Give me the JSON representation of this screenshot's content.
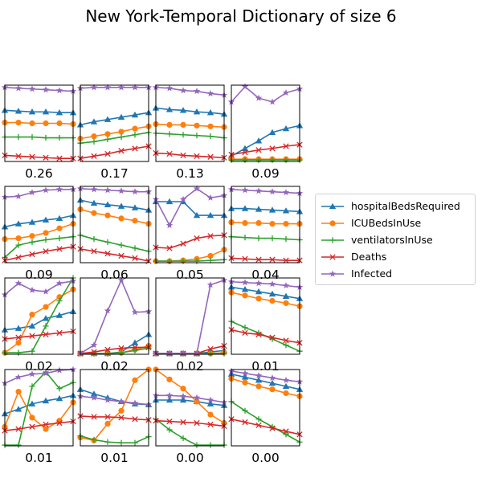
{
  "title": "New York-Temporal Dictionary of size 6",
  "colors": {
    "hospitalBedsRequired": "#1f77b4",
    "ICUBedsInUse": "#ff7f0e",
    "ventilatorsInUse": "#2ca02c",
    "Deaths": "#d62728",
    "Infected": "#9467bd"
  },
  "chart_data": {
    "type": "line",
    "title": "New York-Temporal Dictionary of size 6",
    "legend": {
      "position": "right",
      "entries": [
        {
          "key": "hospitalBedsRequired",
          "label": "hospitalBedsRequired",
          "marker": "triangle"
        },
        {
          "key": "ICUBedsInUse",
          "label": "ICUBedsInUse",
          "marker": "circle"
        },
        {
          "key": "ventilatorsInUse",
          "label": "ventilatorsInUse",
          "marker": "plus"
        },
        {
          "key": "Deaths",
          "label": "Deaths",
          "marker": "x"
        },
        {
          "key": "Infected",
          "label": "Infected",
          "marker": "star"
        }
      ]
    },
    "x": [
      0,
      1,
      2,
      3,
      4,
      5
    ],
    "ylim": [
      0,
      1
    ],
    "axis_ticks": false,
    "panels": [
      {
        "weight": "0.26",
        "series": {
          "hospitalBedsRequired": [
            0.67,
            0.66,
            0.65,
            0.65,
            0.64,
            0.64
          ],
          "ICUBedsInUse": [
            0.51,
            0.51,
            0.5,
            0.5,
            0.5,
            0.49
          ],
          "ventilatorsInUse": [
            0.32,
            0.32,
            0.32,
            0.31,
            0.31,
            0.31
          ],
          "Deaths": [
            0.08,
            0.07,
            0.06,
            0.05,
            0.04,
            0.04
          ],
          "Infected": [
            0.97,
            0.96,
            0.95,
            0.94,
            0.93,
            0.92
          ]
        }
      },
      {
        "weight": "0.17",
        "series": {
          "hospitalBedsRequired": [
            0.48,
            0.52,
            0.55,
            0.58,
            0.61,
            0.64
          ],
          "ICUBedsInUse": [
            0.3,
            0.33,
            0.36,
            0.39,
            0.43,
            0.46
          ],
          "ventilatorsInUse": [
            0.24,
            0.26,
            0.29,
            0.32,
            0.35,
            0.38
          ],
          "Deaths": [
            0.04,
            0.07,
            0.1,
            0.14,
            0.17,
            0.2
          ],
          "Infected": [
            0.96,
            0.97,
            0.97,
            0.97,
            0.97,
            0.97
          ]
        }
      },
      {
        "weight": "0.13",
        "series": {
          "hospitalBedsRequired": [
            0.7,
            0.68,
            0.67,
            0.65,
            0.64,
            0.62
          ],
          "ICUBedsInUse": [
            0.49,
            0.48,
            0.48,
            0.47,
            0.46,
            0.45
          ],
          "ventilatorsInUse": [
            0.37,
            0.36,
            0.35,
            0.34,
            0.33,
            0.31
          ],
          "Deaths": [
            0.11,
            0.1,
            0.08,
            0.07,
            0.06,
            0.05
          ],
          "Infected": [
            0.97,
            0.96,
            0.93,
            0.92,
            0.89,
            0.87
          ]
        }
      },
      {
        "weight": "0.09",
        "series": {
          "hospitalBedsRequired": [
            0.07,
            0.17,
            0.27,
            0.38,
            0.43,
            0.47
          ],
          "ICUBedsInUse": [
            0.03,
            0.03,
            0.03,
            0.03,
            0.03,
            0.03
          ],
          "ventilatorsInUse": [
            0.02,
            0.02,
            0.02,
            0.02,
            0.02,
            0.02
          ],
          "Deaths": [
            0.09,
            0.12,
            0.15,
            0.17,
            0.2,
            0.22
          ],
          "Infected": [
            0.78,
            0.98,
            0.83,
            0.78,
            0.9,
            0.95
          ]
        }
      },
      {
        "weight": "0.09",
        "series": {
          "hospitalBedsRequired": [
            0.47,
            0.51,
            0.53,
            0.56,
            0.58,
            0.62
          ],
          "ICUBedsInUse": [
            0.31,
            0.32,
            0.35,
            0.39,
            0.45,
            0.51
          ],
          "ventilatorsInUse": [
            0.07,
            0.23,
            0.27,
            0.3,
            0.32,
            0.34
          ],
          "Deaths": [
            0.03,
            0.07,
            0.11,
            0.15,
            0.18,
            0.21
          ],
          "Infected": [
            0.86,
            0.87,
            0.92,
            0.95,
            0.96,
            0.96
          ]
        }
      },
      {
        "weight": "0.06",
        "series": {
          "hospitalBedsRequired": [
            0.82,
            0.78,
            0.76,
            0.74,
            0.72,
            0.69
          ],
          "ICUBedsInUse": [
            0.7,
            0.65,
            0.62,
            0.58,
            0.55,
            0.51
          ],
          "ventilatorsInUse": [
            0.36,
            0.31,
            0.27,
            0.23,
            0.19,
            0.15
          ],
          "Deaths": [
            0.18,
            0.15,
            0.12,
            0.09,
            0.06,
            0.02
          ],
          "Infected": [
            0.97,
            0.96,
            0.95,
            0.94,
            0.93,
            0.93
          ]
        }
      },
      {
        "weight": "0.05",
        "series": {
          "hospitalBedsRequired": [
            0.8,
            0.8,
            0.8,
            0.62,
            0.62,
            0.62
          ],
          "ICUBedsInUse": [
            0.02,
            0.02,
            0.03,
            0.05,
            0.09,
            0.17
          ],
          "ventilatorsInUse": [
            0.02,
            0.02,
            0.02,
            0.02,
            0.03,
            0.04
          ],
          "Deaths": [
            0.2,
            0.19,
            0.25,
            0.32,
            0.35,
            0.36
          ],
          "Infected": [
            0.83,
            0.49,
            0.83,
            0.97,
            0.85,
            0.88
          ]
        }
      },
      {
        "weight": "0.04",
        "series": {
          "hospitalBedsRequired": [
            0.71,
            0.71,
            0.7,
            0.69,
            0.68,
            0.67
          ],
          "ICUBedsInUse": [
            0.53,
            0.52,
            0.52,
            0.51,
            0.51,
            0.51
          ],
          "ventilatorsInUse": [
            0.34,
            0.33,
            0.32,
            0.32,
            0.31,
            0.3
          ],
          "Deaths": [
            0.06,
            0.05,
            0.04,
            0.04,
            0.03,
            0.03
          ],
          "Infected": [
            0.96,
            0.95,
            0.94,
            0.93,
            0.92,
            0.91
          ]
        }
      },
      {
        "weight": "0.02",
        "series": {
          "hospitalBedsRequired": [
            0.32,
            0.34,
            0.37,
            0.47,
            0.51,
            0.56
          ],
          "ICUBedsInUse": [
            0.02,
            0.15,
            0.52,
            0.62,
            0.75,
            0.85
          ],
          "ventilatorsInUse": [
            0.02,
            0.02,
            0.04,
            0.37,
            0.7,
            1.0
          ],
          "Deaths": [
            0.2,
            0.22,
            0.24,
            0.26,
            0.28,
            0.3
          ],
          "Infected": [
            0.78,
            0.93,
            0.84,
            0.82,
            0.93,
            0.96
          ]
        }
      },
      {
        "weight": "0.02",
        "series": {
          "hospitalBedsRequired": [
            0.01,
            0.01,
            0.01,
            0.03,
            0.15,
            0.26
          ],
          "ICUBedsInUse": [
            0.01,
            0.01,
            0.01,
            0.02,
            0.06,
            0.11
          ],
          "ventilatorsInUse": [
            0.01,
            0.01,
            0.01,
            0.02,
            0.05,
            0.08
          ],
          "Deaths": [
            0.01,
            0.03,
            0.06,
            0.08,
            0.09,
            0.09
          ],
          "Infected": [
            0.01,
            0.12,
            0.57,
            0.97,
            0.55,
            0.56
          ]
        }
      },
      {
        "weight": "0.02",
        "series": {
          "hospitalBedsRequired": [
            0.01,
            0.01,
            0.01,
            0.01,
            0.03,
            0.05
          ],
          "ICUBedsInUse": [
            0.01,
            0.01,
            0.01,
            0.01,
            0.01,
            0.02
          ],
          "ventilatorsInUse": [
            0.01,
            0.01,
            0.01,
            0.01,
            0.01,
            0.01
          ],
          "Deaths": [
            0.01,
            0.01,
            0.01,
            0.01,
            0.07,
            0.11
          ],
          "Infected": [
            0.01,
            0.01,
            0.01,
            0.01,
            0.91,
            0.97
          ]
        }
      },
      {
        "weight": "0.01",
        "series": {
          "hospitalBedsRequired": [
            0.88,
            0.85,
            0.82,
            0.79,
            0.76,
            0.73
          ],
          "ICUBedsInUse": [
            0.81,
            0.77,
            0.73,
            0.7,
            0.67,
            0.63
          ],
          "ventilatorsInUse": [
            0.43,
            0.35,
            0.28,
            0.2,
            0.12,
            0.04
          ],
          "Deaths": [
            0.32,
            0.28,
            0.26,
            0.22,
            0.18,
            0.15
          ],
          "Infected": [
            0.95,
            0.94,
            0.93,
            0.92,
            0.9,
            0.88
          ]
        }
      },
      {
        "weight": "0.01",
        "series": {
          "hospitalBedsRequired": [
            0.42,
            0.48,
            0.55,
            0.59,
            0.62,
            0.66
          ],
          "ICUBedsInUse": [
            0.25,
            0.71,
            0.37,
            0.22,
            0.33,
            0.57
          ],
          "ventilatorsInUse": [
            0.01,
            0.01,
            0.78,
            0.97,
            0.75,
            0.83
          ],
          "Deaths": [
            0.2,
            0.22,
            0.25,
            0.28,
            0.3,
            0.32
          ],
          "Infected": [
            0.82,
            0.9,
            0.94,
            0.95,
            0.99,
            1.0
          ]
        }
      },
      {
        "weight": "0.01",
        "series": {
          "hospitalBedsRequired": [
            0.74,
            0.68,
            0.63,
            0.58,
            0.55,
            0.54
          ],
          "ICUBedsInUse": [
            0.11,
            0.07,
            0.29,
            0.46,
            0.86,
            1.0
          ],
          "ventilatorsInUse": [
            0.13,
            0.08,
            0.05,
            0.04,
            0.04,
            0.12
          ],
          "Deaths": [
            0.39,
            0.38,
            0.38,
            0.37,
            0.35,
            0.34
          ],
          "Infected": [
            0.65,
            0.63,
            0.6,
            0.58,
            0.56,
            0.54
          ]
        }
      },
      {
        "weight": "0.00",
        "series": {
          "hospitalBedsRequired": [
            0.6,
            0.6,
            0.6,
            0.58,
            0.55,
            0.53
          ],
          "ICUBedsInUse": [
            1.0,
            0.87,
            0.75,
            0.58,
            0.41,
            0.3
          ],
          "ventilatorsInUse": [
            0.35,
            0.21,
            0.1,
            0.01,
            0.01,
            0.01
          ],
          "Deaths": [
            0.33,
            0.32,
            0.31,
            0.3,
            0.28,
            0.26
          ],
          "Infected": [
            0.66,
            0.66,
            0.65,
            0.63,
            0.6,
            0.57
          ]
        }
      },
      {
        "weight": "0.00",
        "series": {
          "hospitalBedsRequired": [
            0.94,
            0.9,
            0.86,
            0.82,
            0.78,
            0.74
          ],
          "ICUBedsInUse": [
            0.88,
            0.83,
            0.78,
            0.74,
            0.69,
            0.65
          ],
          "ventilatorsInUse": [
            0.58,
            0.46,
            0.35,
            0.25,
            0.15,
            0.05
          ],
          "Deaths": [
            0.35,
            0.31,
            0.27,
            0.23,
            0.19,
            0.15
          ],
          "Infected": [
            0.98,
            0.95,
            0.92,
            0.89,
            0.86,
            0.84
          ]
        }
      }
    ]
  }
}
